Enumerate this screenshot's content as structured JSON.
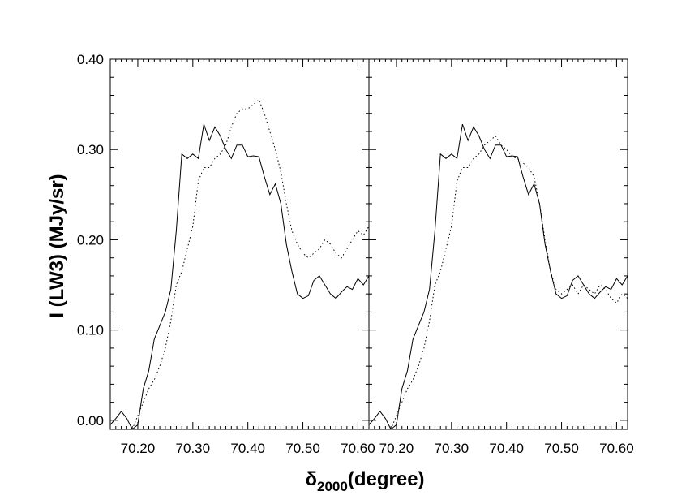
{
  "chart_data": [
    {
      "type": "line",
      "xlabel_main": "δ",
      "xlabel_sub": "2000",
      "xlabel_rest": "(degree)",
      "ylabel": "I (LW3) (MJy/sr)",
      "xlim": [
        70.15,
        70.62
      ],
      "ylim": [
        -0.01,
        0.4
      ],
      "xticks": [
        70.2,
        70.3,
        70.4,
        70.5,
        70.6
      ],
      "xtick_labels": [
        "70.20",
        "70.30",
        "70.40",
        "70.50",
        "70.60"
      ],
      "yticks": [
        0.0,
        0.1,
        0.2,
        0.3,
        0.4
      ],
      "ytick_labels": [
        "0.00",
        "0.10",
        "0.20",
        "0.30",
        "0.40"
      ],
      "series": [
        {
          "style": "solid",
          "x": [
            70.15,
            70.16,
            70.17,
            70.18,
            70.19,
            70.2,
            70.21,
            70.22,
            70.23,
            70.24,
            70.25,
            70.26,
            70.27,
            70.28,
            70.29,
            70.3,
            70.31,
            70.32,
            70.33,
            70.34,
            70.35,
            70.36,
            70.37,
            70.38,
            70.39,
            70.4,
            70.41,
            70.42,
            70.43,
            70.44,
            70.45,
            70.46,
            70.47,
            70.48,
            70.49,
            70.5,
            70.51,
            70.52,
            70.53,
            70.54,
            70.55,
            70.56,
            70.57,
            70.58,
            70.59,
            70.6,
            70.61,
            70.62
          ],
          "y": [
            -0.005,
            0.002,
            0.01,
            0.002,
            -0.01,
            -0.005,
            0.035,
            0.055,
            0.09,
            0.105,
            0.12,
            0.145,
            0.21,
            0.295,
            0.29,
            0.295,
            0.29,
            0.328,
            0.31,
            0.325,
            0.315,
            0.3,
            0.29,
            0.305,
            0.305,
            0.292,
            0.293,
            0.292,
            0.27,
            0.25,
            0.262,
            0.24,
            0.195,
            0.165,
            0.14,
            0.135,
            0.138,
            0.155,
            0.16,
            0.15,
            0.14,
            0.135,
            0.142,
            0.148,
            0.145,
            0.157,
            0.15,
            0.16
          ]
        },
        {
          "style": "dotted",
          "x": [
            70.15,
            70.16,
            70.17,
            70.18,
            70.19,
            70.2,
            70.21,
            70.22,
            70.23,
            70.24,
            70.25,
            70.26,
            70.27,
            70.28,
            70.29,
            70.3,
            70.31,
            70.32,
            70.33,
            70.34,
            70.35,
            70.36,
            70.37,
            70.38,
            70.39,
            70.4,
            70.41,
            70.42,
            70.43,
            70.44,
            70.45,
            70.46,
            70.47,
            70.48,
            70.49,
            70.5,
            70.51,
            70.52,
            70.53,
            70.54,
            70.55,
            70.56,
            70.57,
            70.58,
            70.59,
            70.6,
            70.61,
            70.62
          ],
          "y": [
            -0.01,
            -0.01,
            -0.01,
            -0.01,
            -0.01,
            0.005,
            0.02,
            0.035,
            0.045,
            0.06,
            0.08,
            0.11,
            0.15,
            0.165,
            0.19,
            0.215,
            0.265,
            0.28,
            0.28,
            0.29,
            0.295,
            0.305,
            0.325,
            0.34,
            0.345,
            0.345,
            0.35,
            0.355,
            0.34,
            0.32,
            0.3,
            0.275,
            0.24,
            0.21,
            0.195,
            0.185,
            0.18,
            0.185,
            0.19,
            0.2,
            0.195,
            0.185,
            0.18,
            0.19,
            0.2,
            0.21,
            0.205,
            0.215
          ]
        }
      ]
    },
    {
      "type": "line",
      "xlim": [
        70.15,
        70.62
      ],
      "ylim": [
        -0.01,
        0.4
      ],
      "xticks": [
        70.2,
        70.3,
        70.4,
        70.5,
        70.6
      ],
      "xtick_labels": [
        "70.20",
        "70.30",
        "70.40",
        "70.50",
        "70.60"
      ],
      "series": [
        {
          "style": "solid",
          "x": [
            70.15,
            70.16,
            70.17,
            70.18,
            70.19,
            70.2,
            70.21,
            70.22,
            70.23,
            70.24,
            70.25,
            70.26,
            70.27,
            70.28,
            70.29,
            70.3,
            70.31,
            70.32,
            70.33,
            70.34,
            70.35,
            70.36,
            70.37,
            70.38,
            70.39,
            70.4,
            70.41,
            70.42,
            70.43,
            70.44,
            70.45,
            70.46,
            70.47,
            70.48,
            70.49,
            70.5,
            70.51,
            70.52,
            70.53,
            70.54,
            70.55,
            70.56,
            70.57,
            70.58,
            70.59,
            70.6,
            70.61,
            70.62
          ],
          "y": [
            -0.005,
            0.002,
            0.01,
            0.002,
            -0.01,
            -0.005,
            0.035,
            0.055,
            0.09,
            0.105,
            0.12,
            0.145,
            0.21,
            0.295,
            0.29,
            0.295,
            0.29,
            0.328,
            0.31,
            0.325,
            0.315,
            0.3,
            0.29,
            0.305,
            0.305,
            0.292,
            0.293,
            0.292,
            0.27,
            0.25,
            0.262,
            0.24,
            0.195,
            0.165,
            0.14,
            0.135,
            0.138,
            0.155,
            0.16,
            0.15,
            0.14,
            0.135,
            0.142,
            0.148,
            0.145,
            0.157,
            0.15,
            0.16
          ]
        },
        {
          "style": "dotted",
          "x": [
            70.15,
            70.16,
            70.17,
            70.18,
            70.19,
            70.2,
            70.21,
            70.22,
            70.23,
            70.24,
            70.25,
            70.26,
            70.27,
            70.28,
            70.29,
            70.3,
            70.31,
            70.32,
            70.33,
            70.34,
            70.35,
            70.36,
            70.37,
            70.38,
            70.39,
            70.4,
            70.41,
            70.42,
            70.43,
            70.44,
            70.45,
            70.46,
            70.47,
            70.48,
            70.49,
            70.5,
            70.51,
            70.52,
            70.53,
            70.54,
            70.55,
            70.56,
            70.57,
            70.58,
            70.59,
            70.6,
            70.61,
            70.62
          ],
          "y": [
            -0.01,
            -0.01,
            -0.01,
            -0.01,
            -0.01,
            0.005,
            0.02,
            0.035,
            0.045,
            0.06,
            0.08,
            0.11,
            0.15,
            0.165,
            0.19,
            0.215,
            0.265,
            0.28,
            0.28,
            0.29,
            0.295,
            0.305,
            0.31,
            0.315,
            0.305,
            0.3,
            0.292,
            0.29,
            0.285,
            0.28,
            0.27,
            0.24,
            0.2,
            0.165,
            0.145,
            0.14,
            0.145,
            0.15,
            0.14,
            0.15,
            0.145,
            0.14,
            0.15,
            0.145,
            0.135,
            0.13,
            0.14,
            0.135
          ]
        }
      ]
    }
  ]
}
